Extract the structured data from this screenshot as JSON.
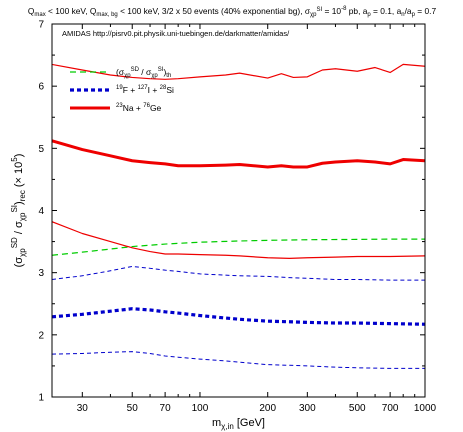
{
  "chart_data": {
    "type": "line",
    "title": "Q_max < 100 keV, Q_max, bg < 100 keV, 3/2 x 50 events (40% exponential bg), σ_χp^SI = 10^-8 pb, a_p = 0.1, a_n/a_p = 0.7",
    "annotation": "AMIDAS   http://pisrv0.pit.physik.uni-tuebingen.de/darkmatter/amidas/",
    "xlabel": "m_χ,in [GeV]",
    "ylabel": "(σ_χp^SD / σ_χp^SI)_rec (× 10^5)",
    "xscale": "log",
    "xlim": [
      22,
      1000
    ],
    "ylim": [
      1,
      7
    ],
    "xticks": [
      30,
      50,
      70,
      100,
      200,
      300,
      500,
      700,
      1000
    ],
    "yticks": [
      1,
      2,
      3,
      4,
      5,
      6,
      7
    ],
    "grid": false,
    "legend_position": "top-left",
    "series": [
      {
        "name": "(σ_χp^SD / σ_χp^SI)_th",
        "color": "#00cc00",
        "style": "dashed",
        "role": "theory",
        "x": [
          22,
          30,
          40,
          50,
          70,
          100,
          150,
          200,
          300,
          500,
          700,
          1000
        ],
        "y": [
          3.28,
          3.33,
          3.38,
          3.42,
          3.46,
          3.49,
          3.51,
          3.52,
          3.53,
          3.535,
          3.54,
          3.54
        ]
      },
      {
        "name": "19F + 127I + 28Si",
        "color": "#0000cc",
        "style": "dotted",
        "role": "median",
        "x": [
          22,
          30,
          40,
          50,
          60,
          70,
          80,
          100,
          130,
          150,
          200,
          250,
          300,
          400,
          500,
          700,
          1000
        ],
        "y": [
          2.29,
          2.33,
          2.38,
          2.42,
          2.4,
          2.37,
          2.35,
          2.31,
          2.27,
          2.25,
          2.22,
          2.21,
          2.2,
          2.19,
          2.19,
          2.18,
          2.17
        ]
      },
      {
        "name": "19F + 127I + 28Si upper",
        "color": "#0000cc",
        "style": "dashed-thin",
        "role": "band",
        "x": [
          22,
          30,
          40,
          50,
          60,
          70,
          80,
          100,
          130,
          150,
          200,
          250,
          300,
          400,
          500,
          700,
          1000
        ],
        "y": [
          2.89,
          2.95,
          3.03,
          3.1,
          3.07,
          3.04,
          3.02,
          2.98,
          2.96,
          2.95,
          2.94,
          2.92,
          2.91,
          2.89,
          2.89,
          2.88,
          2.88
        ]
      },
      {
        "name": "19F + 127I + 28Si lower",
        "color": "#0000cc",
        "style": "dashed-thin",
        "role": "band",
        "x": [
          22,
          30,
          40,
          50,
          60,
          70,
          80,
          100,
          130,
          150,
          200,
          250,
          300,
          400,
          500,
          700,
          1000
        ],
        "y": [
          1.69,
          1.7,
          1.72,
          1.73,
          1.7,
          1.66,
          1.64,
          1.61,
          1.58,
          1.56,
          1.52,
          1.51,
          1.5,
          1.48,
          1.47,
          1.46,
          1.46
        ]
      },
      {
        "name": "23Na + 76Ge",
        "color": "#ee0000",
        "style": "solid-thick",
        "role": "median",
        "x": [
          22,
          30,
          40,
          50,
          60,
          70,
          80,
          100,
          130,
          150,
          200,
          230,
          260,
          300,
          350,
          400,
          500,
          600,
          700,
          800,
          1000
        ],
        "y": [
          5.12,
          4.98,
          4.88,
          4.8,
          4.77,
          4.75,
          4.72,
          4.72,
          4.73,
          4.74,
          4.7,
          4.72,
          4.7,
          4.7,
          4.76,
          4.78,
          4.8,
          4.78,
          4.75,
          4.82,
          4.8
        ]
      },
      {
        "name": "23Na + 76Ge upper",
        "color": "#ee0000",
        "style": "solid-thin",
        "role": "band",
        "x": [
          22,
          30,
          40,
          50,
          60,
          70,
          80,
          100,
          130,
          150,
          200,
          230,
          260,
          300,
          350,
          400,
          500,
          600,
          700,
          800,
          1000
        ],
        "y": [
          6.35,
          6.26,
          6.18,
          6.14,
          6.12,
          6.11,
          6.12,
          6.15,
          6.18,
          6.21,
          6.13,
          6.2,
          6.14,
          6.15,
          6.26,
          6.28,
          6.24,
          6.3,
          6.22,
          6.35,
          6.32
        ]
      },
      {
        "name": "23Na + 76Ge lower",
        "color": "#ee0000",
        "style": "solid-thin",
        "role": "band",
        "x": [
          22,
          30,
          40,
          50,
          60,
          70,
          80,
          100,
          130,
          150,
          200,
          250,
          300,
          400,
          500,
          700,
          1000
        ],
        "y": [
          3.82,
          3.63,
          3.5,
          3.4,
          3.34,
          3.3,
          3.3,
          3.29,
          3.28,
          3.27,
          3.24,
          3.23,
          3.24,
          3.25,
          3.26,
          3.26,
          3.27
        ]
      }
    ]
  }
}
